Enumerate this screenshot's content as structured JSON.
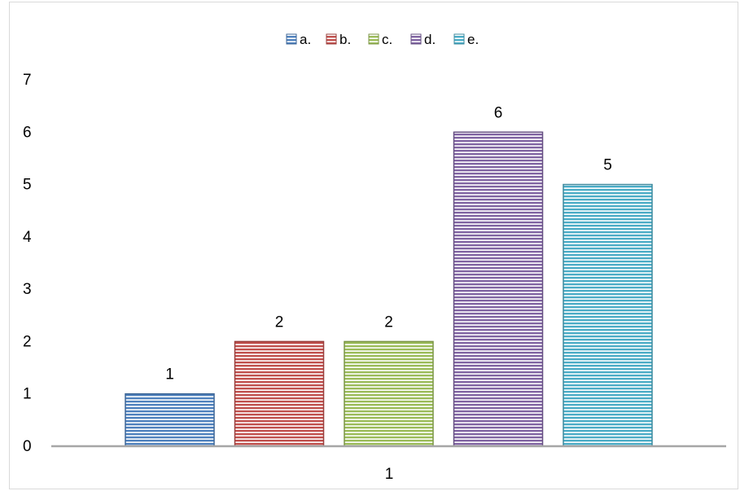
{
  "chart_data": {
    "type": "bar",
    "title": "",
    "xlabel": "",
    "ylabel": "",
    "categories": [
      "1"
    ],
    "ylim": [
      0,
      7
    ],
    "yticks": [
      "0",
      "1",
      "2",
      "3",
      "4",
      "5",
      "6",
      "7"
    ],
    "grid": false,
    "legend_position": "top",
    "data_labels": true,
    "fill_pattern": "horizontal-stripes",
    "series": [
      {
        "name": "a.",
        "values": [
          1
        ],
        "color": "#4F81BD"
      },
      {
        "name": "b.",
        "values": [
          2
        ],
        "color": "#C0504D"
      },
      {
        "name": "c.",
        "values": [
          2
        ],
        "color": "#9BBB59"
      },
      {
        "name": "d.",
        "values": [
          6
        ],
        "color": "#8064A2"
      },
      {
        "name": "e.",
        "values": [
          5
        ],
        "color": "#4BACC6"
      }
    ]
  }
}
